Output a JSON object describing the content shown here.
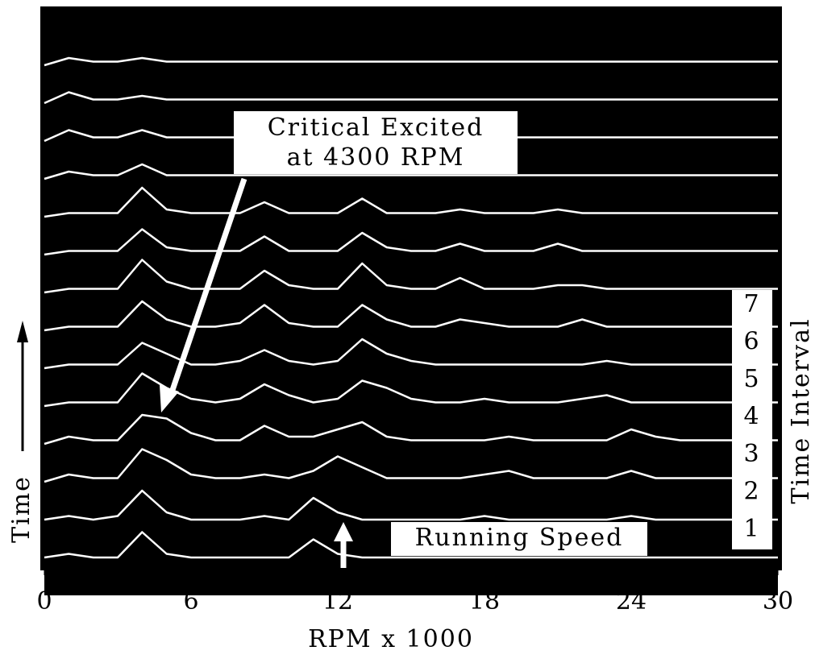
{
  "chart_data": {
    "type": "waterfall",
    "x_label": "RPM x 1000",
    "y_label": "Time",
    "right_label": "Time Interval",
    "interval_labels": [
      1,
      2,
      3,
      4,
      5,
      6,
      7
    ],
    "annotations": [
      "Critical Excited",
      "at 4300 RPM",
      "Running Speed"
    ],
    "color": "#ffffff",
    "background": "#000000",
    "xlim": [
      0,
      30
    ],
    "xticks": [
      0,
      6,
      12,
      18,
      24,
      30
    ],
    "x": [
      0,
      1,
      2,
      3,
      4,
      5,
      6,
      7,
      8,
      9,
      10,
      11,
      12,
      13,
      14,
      15,
      16,
      17,
      18,
      19,
      20,
      21,
      22,
      23,
      24,
      25,
      26,
      27,
      28,
      29,
      30
    ],
    "series": [
      {
        "values": [
          0,
          1,
          0,
          0,
          7,
          1,
          0,
          0,
          0,
          0,
          0,
          5,
          1,
          0,
          0,
          0,
          0,
          0,
          0,
          0,
          0,
          0,
          0,
          0,
          0,
          0,
          0,
          0,
          0,
          0,
          0
        ]
      },
      {
        "values": [
          0,
          1,
          0,
          1,
          8,
          2,
          0,
          0,
          0,
          1,
          0,
          6,
          2,
          0,
          0,
          0,
          0,
          0,
          1,
          0,
          0,
          0,
          0,
          0,
          1,
          0,
          0,
          0,
          0,
          0,
          0
        ]
      },
      {
        "values": [
          0,
          2,
          1,
          1,
          9,
          6,
          2,
          1,
          1,
          2,
          1,
          3,
          7,
          4,
          1,
          1,
          1,
          1,
          2,
          3,
          1,
          1,
          1,
          1,
          3,
          1,
          1,
          1,
          1,
          1,
          1
        ]
      },
      {
        "values": [
          0,
          2,
          1,
          1,
          8,
          7,
          3,
          1,
          1,
          5,
          2,
          2,
          4,
          6,
          2,
          1,
          1,
          1,
          1,
          2,
          1,
          1,
          1,
          1,
          4,
          2,
          1,
          1,
          1,
          1,
          1
        ]
      },
      {
        "values": [
          0,
          1,
          1,
          1,
          9,
          5,
          2,
          1,
          2,
          6,
          3,
          1,
          2,
          7,
          5,
          2,
          1,
          1,
          2,
          1,
          1,
          1,
          2,
          3,
          1,
          1,
          1,
          1,
          1,
          1,
          1
        ]
      },
      {
        "values": [
          0,
          1,
          1,
          1,
          7,
          4,
          1,
          1,
          2,
          5,
          2,
          1,
          2,
          8,
          4,
          2,
          1,
          1,
          1,
          1,
          1,
          1,
          1,
          2,
          1,
          1,
          1,
          1,
          1,
          1,
          1
        ]
      },
      {
        "values": [
          0,
          1,
          1,
          1,
          8,
          3,
          1,
          1,
          2,
          7,
          2,
          1,
          1,
          7,
          3,
          1,
          1,
          3,
          2,
          1,
          1,
          1,
          3,
          1,
          1,
          1,
          1,
          1,
          1,
          1,
          1
        ]
      },
      {
        "values": [
          0,
          1,
          1,
          1,
          9,
          3,
          1,
          1,
          1,
          6,
          2,
          1,
          1,
          8,
          2,
          1,
          1,
          4,
          1,
          1,
          1,
          2,
          2,
          1,
          1,
          1,
          1,
          1,
          1,
          1,
          1
        ]
      },
      {
        "values": [
          0,
          1,
          1,
          1,
          7,
          2,
          1,
          1,
          1,
          5,
          1,
          1,
          1,
          6,
          2,
          1,
          1,
          3,
          1,
          1,
          1,
          3,
          1,
          1,
          1,
          1,
          1,
          1,
          1,
          1,
          1
        ]
      },
      {
        "values": [
          0,
          1,
          1,
          1,
          8,
          2,
          1,
          1,
          1,
          4,
          1,
          1,
          1,
          5,
          1,
          1,
          1,
          2,
          1,
          1,
          1,
          2,
          1,
          1,
          1,
          1,
          1,
          1,
          1,
          1,
          1
        ]
      },
      {
        "values": [
          0,
          2,
          1,
          1,
          4,
          1,
          1,
          1,
          1,
          1,
          1,
          1,
          1,
          1,
          1,
          1,
          1,
          1,
          1,
          1,
          1,
          1,
          1,
          1,
          1,
          1,
          1,
          1,
          1,
          1,
          1
        ]
      },
      {
        "values": [
          0,
          3,
          1,
          1,
          3,
          1,
          1,
          1,
          1,
          1,
          1,
          1,
          1,
          1,
          1,
          1,
          1,
          1,
          1,
          1,
          1,
          1,
          1,
          1,
          1,
          1,
          1,
          1,
          1,
          1,
          1
        ]
      },
      {
        "values": [
          0,
          3,
          1,
          1,
          2,
          1,
          1,
          1,
          1,
          1,
          1,
          1,
          1,
          1,
          1,
          1,
          1,
          1,
          1,
          1,
          1,
          1,
          1,
          1,
          1,
          1,
          1,
          1,
          1,
          1,
          1
        ]
      },
      {
        "values": [
          0,
          2,
          1,
          1,
          2,
          1,
          1,
          1,
          1,
          1,
          1,
          1,
          1,
          1,
          1,
          1,
          1,
          1,
          1,
          1,
          1,
          1,
          1,
          1,
          1,
          1,
          1,
          1,
          1,
          1,
          1
        ]
      }
    ]
  }
}
